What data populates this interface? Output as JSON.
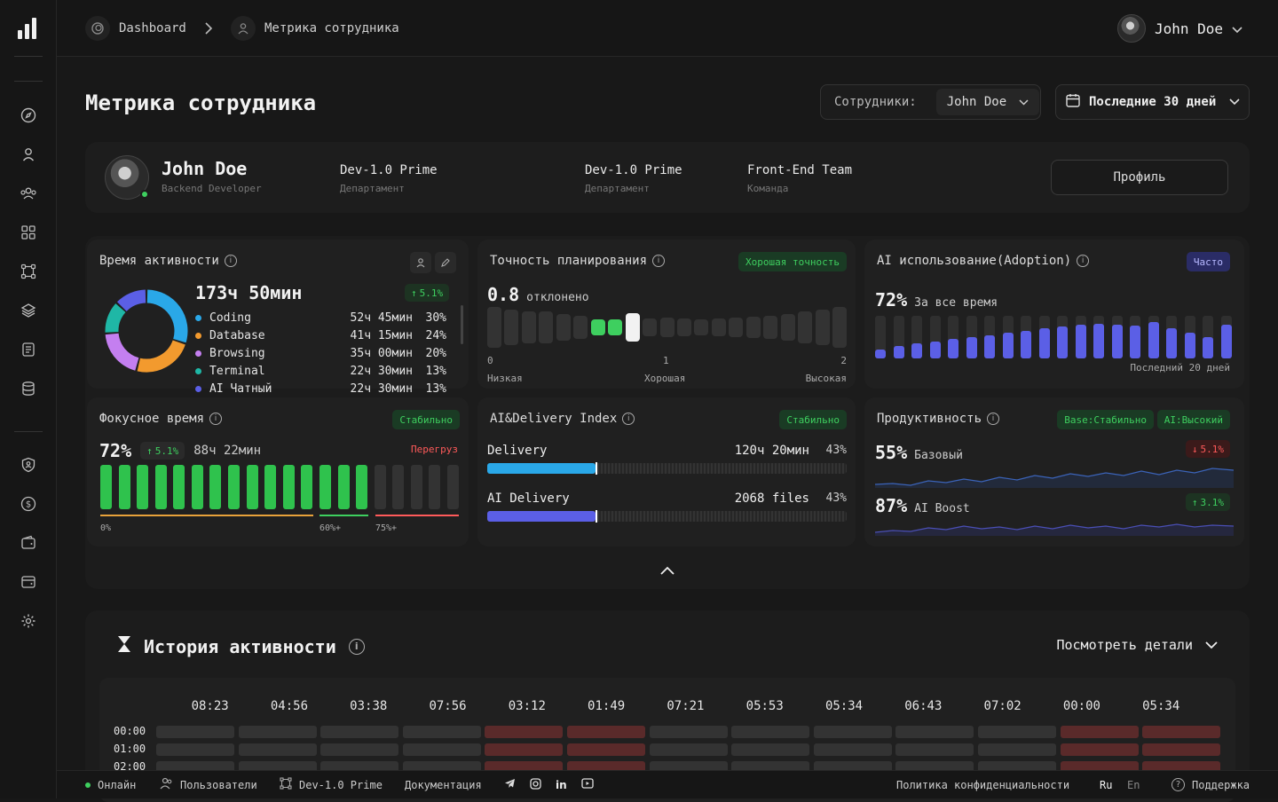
{
  "breadcrumb": {
    "home": "Dashboard",
    "current": "Метрика сотрудника"
  },
  "user": {
    "name": "John Doe"
  },
  "page": {
    "title": "Метрика сотрудника"
  },
  "filters": {
    "employees_label": "Сотрудники:",
    "employees_value": "John Doe",
    "period": "Последние 30 дней"
  },
  "employee": {
    "name": "John Doe",
    "role": "Backend Developer",
    "fields": [
      {
        "value": "Dev-1.0 Prime",
        "label": "Департамент"
      },
      {
        "value": "Dev-1.0 Prime",
        "label": "Департамент"
      },
      {
        "value": "Front-End Team",
        "label": "Команда"
      }
    ],
    "profile_button": "Профиль"
  },
  "activity": {
    "title": "Время активности",
    "total": "173ч 50мин",
    "delta": "5.1%",
    "items": [
      {
        "name": "Coding",
        "time": "52ч 45мин",
        "pct": "30%",
        "color": "#2aa8e8",
        "share": 30
      },
      {
        "name": "Database",
        "time": "41ч 15мин",
        "pct": "24%",
        "color": "#f29a2e",
        "share": 24
      },
      {
        "name": "Browsing",
        "time": "35ч 00мин",
        "pct": "20%",
        "color": "#c47ff0",
        "share": 20
      },
      {
        "name": "Terminal",
        "time": "22ч 30мин",
        "pct": "13%",
        "color": "#1fb7a6",
        "share": 13
      },
      {
        "name": "AI Чатный",
        "time": "22ч 30мин",
        "pct": "13%",
        "color": "#5b5fe6",
        "share": 13
      }
    ]
  },
  "planning": {
    "title": "Точность планирования",
    "badge": "Хорошая точность",
    "value": "0.8",
    "unit": "отклонено",
    "position": 0.8,
    "axis": [
      {
        "num": "0",
        "label": "Низкая"
      },
      {
        "num": "1",
        "label": "Хорошая"
      },
      {
        "num": "2",
        "label": "Высокая"
      }
    ]
  },
  "ai_adoption": {
    "title": "AI использование(Adoption)",
    "badge": "Часто",
    "value": "72%",
    "label": "За все время",
    "caption": "Последний 20 дней",
    "bars": [
      0.2,
      0.3,
      0.35,
      0.4,
      0.45,
      0.5,
      0.55,
      0.6,
      0.65,
      0.7,
      0.75,
      0.8,
      0.82,
      0.8,
      0.78,
      0.85,
      0.7,
      0.6,
      0.5,
      0.8
    ]
  },
  "focus": {
    "title": "Фокусное время",
    "badge": "Стабильно",
    "value": "72%",
    "delta": "5.1%",
    "time": "88ч 22мин",
    "warning": "Перегруз",
    "scale": [
      "0%",
      "60%+",
      "75%+"
    ],
    "bars_active": 15,
    "bars_total": 20
  },
  "ai_delivery": {
    "title": "AI&Delivery Index",
    "badge": "Стабильно",
    "rows": [
      {
        "name": "Delivery",
        "value": "120ч 20мин",
        "pct": "43%",
        "fill": 0.3,
        "color": "#2aa8e8"
      },
      {
        "name": "AI Delivery",
        "value": "2068 files",
        "pct": "43%",
        "fill": 0.3,
        "color": "#5b5fe6"
      }
    ]
  },
  "productivity": {
    "title": "Продуктивность",
    "badge1": "Base:Стабильно",
    "badge2": "AI:Высокий",
    "base_value": "55%",
    "base_label": "Базовый",
    "base_delta": "5.1%",
    "ai_value": "87%",
    "ai_label": "AI Boost",
    "ai_delta": "3.1%"
  },
  "history": {
    "title": "История активности",
    "more": "Посмотреть детали",
    "columns": [
      "08:23",
      "04:56",
      "03:38",
      "07:56",
      "03:12",
      "01:49",
      "07:21",
      "05:53",
      "05:34",
      "06:43",
      "07:02",
      "00:00",
      "05:34"
    ],
    "rows": [
      "00:00",
      "01:00",
      "02:00"
    ],
    "highlight_columns": [
      4,
      5,
      11,
      12
    ]
  },
  "footer": {
    "status": "Онлайн",
    "users": "Пользователи",
    "dept": "Dev-1.0 Prime",
    "docs": "Документация",
    "privacy": "Политика конфиденциальности",
    "lang1": "Ru",
    "lang2": "En",
    "support": "Поддержка"
  }
}
